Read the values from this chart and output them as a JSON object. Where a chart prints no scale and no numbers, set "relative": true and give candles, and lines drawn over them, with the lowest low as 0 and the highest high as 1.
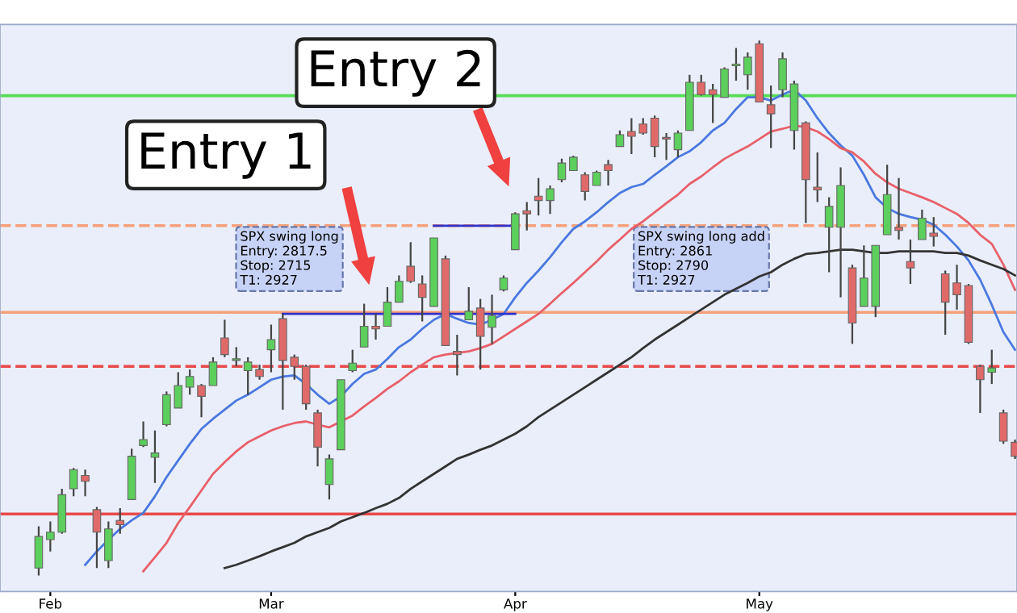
{
  "chart_data": {
    "type": "candlestick",
    "relative": true,
    "categories": [
      null,
      "Feb",
      null,
      null,
      null,
      null,
      null,
      null,
      null,
      null,
      null,
      null,
      null,
      null,
      null,
      null,
      null,
      null,
      null,
      null,
      "Mar",
      null,
      null,
      null,
      null,
      null,
      null,
      null,
      null,
      null,
      null,
      null,
      null,
      null,
      null,
      null,
      null,
      null,
      null,
      null,
      null,
      "Apr",
      null,
      null,
      null,
      null,
      null,
      null,
      null,
      null,
      null,
      null,
      null,
      null,
      null,
      null,
      null,
      null,
      null,
      null,
      null,
      null,
      "May",
      null,
      null,
      null,
      null,
      null,
      null,
      null,
      null,
      null,
      null,
      null,
      null,
      null,
      null,
      null,
      null,
      null,
      null,
      null,
      null,
      null,
      null
    ],
    "ohlc": [
      [
        0.014,
        0.092,
        0,
        0.073
      ],
      [
        0.067,
        0.101,
        0.045,
        0.081
      ],
      [
        0.081,
        0.162,
        0.078,
        0.151
      ],
      [
        0.162,
        0.201,
        0.148,
        0.198
      ],
      [
        0.187,
        0.198,
        0.148,
        0.176
      ],
      [
        0.123,
        0.128,
        0.014,
        0.081
      ],
      [
        0.028,
        0.101,
        0.014,
        0.087
      ],
      [
        0.103,
        0.126,
        0.078,
        0.095
      ],
      [
        0.142,
        0.237,
        0.142,
        0.223
      ],
      [
        0.243,
        0.288,
        0.24,
        0.254
      ],
      [
        0.221,
        0.271,
        0.173,
        0.229
      ],
      [
        0.282,
        0.344,
        0.279,
        0.338
      ],
      [
        0.313,
        0.38,
        0.313,
        0.355
      ],
      [
        0.352,
        0.385,
        0.338,
        0.372
      ],
      [
        0.355,
        0.358,
        0.296,
        0.335
      ],
      [
        0.355,
        0.408,
        0.355,
        0.399
      ],
      [
        0.444,
        0.478,
        0.408,
        0.413
      ],
      [
        0.402,
        0.427,
        0.391,
        0.405
      ],
      [
        0.383,
        0.408,
        0.338,
        0.399
      ],
      [
        0.385,
        0.394,
        0.366,
        0.372
      ],
      [
        0.422,
        0.469,
        0.38,
        0.441
      ],
      [
        0.48,
        0.489,
        0.31,
        0.402
      ],
      [
        0.408,
        0.413,
        0.366,
        0.391
      ],
      [
        0.391,
        0.394,
        0.31,
        0.321
      ],
      [
        0.304,
        0.31,
        0.204,
        0.24
      ],
      [
        0.17,
        0.226,
        0.142,
        0.218
      ],
      [
        0.235,
        0.366,
        0.235,
        0.366
      ],
      [
        0.383,
        0.422,
        0.38,
        0.397
      ],
      [
        0.427,
        0.508,
        0.427,
        0.466
      ],
      [
        0.466,
        0.489,
        0.441,
        0.461
      ],
      [
        0.466,
        0.539,
        0.466,
        0.511
      ],
      [
        0.511,
        0.561,
        0.511,
        0.55
      ],
      [
        0.578,
        0.623,
        0.547,
        0.55
      ],
      [
        0.545,
        0.561,
        0.475,
        0.52
      ],
      [
        0.503,
        0.631,
        0.503,
        0.631
      ],
      [
        0.592,
        0.598,
        0.43,
        0.43
      ],
      [
        0.419,
        0.45,
        0.374,
        0.413
      ],
      [
        0.478,
        0.539,
        0.478,
        0.494
      ],
      [
        0.5,
        0.517,
        0.385,
        0.447
      ],
      [
        0.464,
        0.525,
        0.433,
        0.486
      ],
      [
        0.534,
        0.561,
        0.531,
        0.556
      ],
      [
        0.609,
        0.679,
        0.609,
        0.676
      ],
      [
        0.682,
        0.698,
        0.645,
        0.676
      ],
      [
        0.709,
        0.743,
        0.673,
        0.701
      ],
      [
        0.701,
        0.729,
        0.676,
        0.723
      ],
      [
        0.74,
        0.779,
        0.735,
        0.771
      ],
      [
        0.757,
        0.785,
        0.757,
        0.782
      ],
      [
        0.749,
        0.754,
        0.701,
        0.718
      ],
      [
        0.729,
        0.757,
        0.729,
        0.754
      ],
      [
        0.768,
        0.777,
        0.729,
        0.757
      ],
      [
        0.802,
        0.832,
        0.802,
        0.824
      ],
      [
        0.83,
        0.855,
        0.788,
        0.821
      ],
      [
        0.844,
        0.855,
        0.824,
        0.827
      ],
      [
        0.855,
        0.86,
        0.782,
        0.802
      ],
      [
        0.818,
        0.827,
        0.777,
        0.816
      ],
      [
        0.796,
        0.832,
        0.782,
        0.827
      ],
      [
        0.832,
        0.936,
        0.832,
        0.922
      ],
      [
        0.922,
        0.936,
        0.897,
        0.899
      ],
      [
        0.908,
        0.919,
        0.846,
        0.899
      ],
      [
        0.894,
        0.95,
        0.894,
        0.947
      ],
      [
        0.953,
        0.986,
        0.925,
        0.955
      ],
      [
        0.936,
        0.978,
        0.908,
        0.969
      ],
      [
        0.994,
        1,
        0.885,
        0.885
      ],
      [
        0.88,
        0.916,
        0.799,
        0.863
      ],
      [
        0.908,
        0.978,
        0.894,
        0.966
      ],
      [
        0.832,
        0.925,
        0.796,
        0.919
      ],
      [
        0.846,
        0.849,
        0.659,
        0.74
      ],
      [
        0.726,
        0.791,
        0.698,
        0.721
      ],
      [
        0.651,
        0.707,
        0.567,
        0.69
      ],
      [
        0.651,
        0.763,
        0.52,
        0.729
      ],
      [
        0.575,
        0.581,
        0.433,
        0.472
      ],
      [
        0.503,
        0.617,
        0.503,
        0.556
      ],
      [
        0.503,
        0.617,
        0.483,
        0.617
      ],
      [
        0.637,
        0.768,
        0.637,
        0.712
      ],
      [
        0.651,
        0.743,
        0.628,
        0.645
      ],
      [
        0.587,
        0.628,
        0.545,
        0.575
      ],
      [
        0.628,
        0.684,
        0.628,
        0.668
      ],
      [
        0.64,
        0.67,
        0.615,
        0.634
      ],
      [
        0.564,
        0.57,
        0.45,
        0.511
      ],
      [
        0.547,
        0.581,
        0.497,
        0.525
      ],
      [
        0.542,
        0.545,
        0.433,
        0.436
      ],
      [
        0.391,
        0.394,
        0.304,
        0.366
      ],
      [
        0.38,
        0.422,
        0.358,
        0.388
      ],
      [
        0.304,
        0.31,
        0.246,
        0.251
      ],
      [
        0.249,
        0.254,
        0.218,
        0.223
      ]
    ],
    "colors": [
      "#5ccf5c",
      "#5ccf5c",
      "#5ccf5c",
      "#5ccf5c",
      "#e06a6a",
      "#e06a6a",
      "#5ccf5c",
      "#e06a6a",
      "#5ccf5c",
      "#5ccf5c",
      "#5ccf5c",
      "#5ccf5c",
      "#5ccf5c",
      "#5ccf5c",
      "#e06a6a",
      "#5ccf5c",
      "#e06a6a",
      "#5ccf5c",
      "#5ccf5c",
      "#e06a6a",
      "#5ccf5c",
      "#e06a6a",
      "#e06a6a",
      "#e06a6a",
      "#e06a6a",
      "#5ccf5c",
      "#5ccf5c",
      "#5ccf5c",
      "#5ccf5c",
      "#e06a6a",
      "#5ccf5c",
      "#5ccf5c",
      "#e06a6a",
      "#e06a6a",
      "#5ccf5c",
      "#e06a6a",
      "#e06a6a",
      "#5ccf5c",
      "#e06a6a",
      "#5ccf5c",
      "#5ccf5c",
      "#5ccf5c",
      "#e06a6a",
      "#e06a6a",
      "#5ccf5c",
      "#5ccf5c",
      "#5ccf5c",
      "#e06a6a",
      "#5ccf5c",
      "#e06a6a",
      "#5ccf5c",
      "#e06a6a",
      "#e06a6a",
      "#e06a6a",
      "#e06a6a",
      "#5ccf5c",
      "#5ccf5c",
      "#e06a6a",
      "#e06a6a",
      "#5ccf5c",
      "#5ccf5c",
      "#5ccf5c",
      "#e06a6a",
      "#e06a6a",
      "#5ccf5c",
      "#5ccf5c",
      "#e06a6a",
      "#e06a6a",
      "#5ccf5c",
      "#5ccf5c",
      "#e06a6a",
      "#5ccf5c",
      "#5ccf5c",
      "#5ccf5c",
      "#e06a6a",
      "#e06a6a",
      "#5ccf5c",
      "#e06a6a",
      "#e06a6a",
      "#e06a6a",
      "#e06a6a",
      "#e06a6a",
      "#5ccf5c",
      "#e06a6a",
      "#e06a6a"
    ],
    "series": [
      {
        "type": "line",
        "color": "#4a78e0",
        "values": [
          null,
          null,
          null,
          null,
          0.02,
          0.045,
          0.067,
          0.087,
          0.103,
          0.117,
          0.148,
          0.184,
          0.215,
          0.246,
          0.274,
          0.293,
          0.31,
          0.327,
          0.338,
          0.352,
          0.366,
          0.372,
          0.374,
          0.358,
          0.338,
          0.321,
          0.335,
          0.358,
          0.377,
          0.385,
          0.405,
          0.427,
          0.441,
          0.461,
          0.478,
          0.489,
          0.48,
          0.472,
          0.469,
          0.478,
          0.489,
          0.52,
          0.547,
          0.57,
          0.595,
          0.623,
          0.648,
          0.662,
          0.679,
          0.698,
          0.715,
          0.726,
          0.732,
          0.749,
          0.765,
          0.782,
          0.793,
          0.81,
          0.832,
          0.846,
          0.872,
          0.894,
          0.894,
          0.888,
          0.899,
          0.908,
          0.888,
          0.855,
          0.827,
          0.804,
          0.785,
          0.749,
          0.707,
          0.687,
          0.676,
          0.67,
          0.665,
          0.656,
          0.637,
          0.615,
          0.589,
          0.553,
          0.506,
          0.455,
          0.422
        ]
      },
      {
        "type": "line",
        "color": "#e8606a",
        "values": [
          null,
          null,
          null,
          null,
          null,
          null,
          null,
          null,
          null,
          0.008,
          0.034,
          0.061,
          0.098,
          0.128,
          0.159,
          0.19,
          0.212,
          0.232,
          0.249,
          0.26,
          0.271,
          0.279,
          0.285,
          0.288,
          0.282,
          0.277,
          0.288,
          0.299,
          0.316,
          0.332,
          0.349,
          0.363,
          0.38,
          0.394,
          0.408,
          0.413,
          0.416,
          0.419,
          0.425,
          0.433,
          0.447,
          0.461,
          0.475,
          0.489,
          0.508,
          0.528,
          0.547,
          0.567,
          0.587,
          0.609,
          0.628,
          0.648,
          0.662,
          0.679,
          0.696,
          0.712,
          0.732,
          0.746,
          0.763,
          0.779,
          0.791,
          0.802,
          0.816,
          0.83,
          0.835,
          0.841,
          0.838,
          0.83,
          0.816,
          0.799,
          0.791,
          0.774,
          0.751,
          0.735,
          0.723,
          0.715,
          0.707,
          0.698,
          0.687,
          0.676,
          0.659,
          0.637,
          0.62,
          0.581,
          0.534
        ]
      },
      {
        "type": "line",
        "color": "#333333",
        "values": [
          null,
          null,
          null,
          null,
          null,
          null,
          null,
          null,
          null,
          null,
          null,
          null,
          null,
          null,
          null,
          null,
          0.014,
          0.02,
          0.028,
          0.036,
          0.045,
          0.053,
          0.061,
          0.073,
          0.081,
          0.089,
          0.101,
          0.109,
          0.117,
          0.126,
          0.134,
          0.145,
          0.162,
          0.176,
          0.19,
          0.204,
          0.218,
          0.226,
          0.235,
          0.243,
          0.254,
          0.265,
          0.279,
          0.296,
          0.31,
          0.324,
          0.338,
          0.352,
          0.366,
          0.38,
          0.394,
          0.408,
          0.425,
          0.441,
          0.455,
          0.469,
          0.483,
          0.497,
          0.511,
          0.525,
          0.536,
          0.547,
          0.559,
          0.567,
          0.581,
          0.592,
          0.601,
          0.603,
          0.606,
          0.609,
          0.609,
          0.606,
          0.603,
          0.603,
          0.606,
          0.606,
          0.606,
          0.606,
          0.603,
          0.603,
          0.598,
          0.589,
          0.581,
          0.573,
          0.561
        ]
      },
      {
        "type": "line",
        "color": "#3030c8",
        "values": [
          null,
          null,
          null,
          null,
          null,
          null,
          null,
          null,
          null,
          null,
          null,
          null,
          null,
          null,
          null,
          null,
          null,
          null,
          null,
          null,
          null,
          0.489,
          0.489,
          0.489,
          0.489,
          0.489,
          0.489,
          0.489,
          0.489,
          0.489,
          0.489,
          0.489,
          0.489,
          0.489,
          0.489,
          0.489,
          0.489,
          0.489,
          0.489,
          0.489,
          0.489,
          0.489,
          null,
          null,
          null,
          null,
          null,
          null,
          null,
          null,
          null,
          null,
          null,
          null,
          null,
          null,
          null,
          null,
          null,
          null,
          null,
          null,
          null,
          null,
          null,
          null,
          null,
          null,
          null,
          null,
          null,
          null,
          null,
          null,
          null,
          null,
          null,
          null,
          null,
          null,
          null,
          null,
          null,
          null,
          null
        ]
      },
      {
        "type": "line",
        "color": "#3030c8",
        "values": [
          null,
          null,
          null,
          null,
          null,
          null,
          null,
          null,
          null,
          null,
          null,
          null,
          null,
          null,
          null,
          null,
          null,
          null,
          null,
          null,
          null,
          null,
          null,
          null,
          null,
          null,
          null,
          null,
          null,
          null,
          null,
          null,
          null,
          null,
          0.654,
          0.654,
          0.654,
          0.654,
          0.654,
          0.654,
          0.654,
          0.654,
          null,
          null,
          null,
          null,
          null,
          null,
          null,
          null,
          null,
          null,
          null,
          null,
          null,
          null,
          null,
          null,
          null,
          null,
          null,
          null,
          null,
          null,
          null,
          null,
          null,
          null,
          null,
          null,
          null,
          null,
          null,
          null,
          null,
          null,
          null,
          null,
          null,
          null,
          null,
          null,
          null,
          null,
          null
        ]
      }
    ],
    "ref_lines": [
      {
        "axis": "y",
        "value": 0.897,
        "color": "#55dd55",
        "line_style": "solid"
      },
      {
        "axis": "y",
        "value": 0.654,
        "color": "#f5a07a",
        "line_style": "dashed"
      },
      {
        "axis": "y",
        "value": 0.492,
        "color": "#f5a07a",
        "line_style": "solid"
      },
      {
        "axis": "y",
        "value": 0.391,
        "color": "#e84a4a",
        "line_style": "dashed"
      },
      {
        "axis": "y",
        "value": 0.115,
        "color": "#e84a4a",
        "line_style": "solid"
      }
    ],
    "annotations": [
      "Entry 1",
      "Entry 2",
      "SPX swing long\nEntry: 2817.5\nStop: 2715\nT1: 2927",
      "SPX swing long add\nEntry: 2861\nStop: 2790\nT1: 2927"
    ],
    "grid": false
  }
}
